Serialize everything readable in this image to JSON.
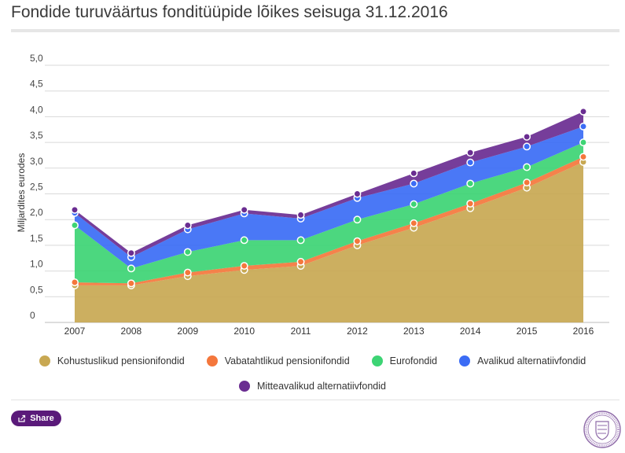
{
  "title": "Fondide turuväärtus fonditüüpide lõikes seisuga 31.12.2016",
  "share_label": "Share",
  "icons": {
    "share": "share-icon",
    "logo": "estonian-coat-of-arms-seal"
  },
  "chart_data": {
    "type": "area",
    "stacked": true,
    "ylabel": "Miljardites eurodes",
    "xlabel": "",
    "ylim": [
      0,
      5
    ],
    "yticks": [
      "0",
      "0,5",
      "1,0",
      "1,5",
      "2,0",
      "2,5",
      "3,0",
      "3,5",
      "4,0",
      "4,5",
      "5,0"
    ],
    "grid": true,
    "legend_position": "bottom",
    "categories": [
      "2007",
      "2008",
      "2009",
      "2010",
      "2011",
      "2012",
      "2013",
      "2014",
      "2015",
      "2016"
    ],
    "series": [
      {
        "name": "Kohustuslikud pensionifondid",
        "color": "#c8a852",
        "values": [
          0.72,
          0.72,
          0.9,
          1.02,
          1.1,
          1.5,
          1.84,
          2.22,
          2.62,
          3.12
        ]
      },
      {
        "name": "Vabatahtlikud pensionifondid",
        "color": "#f4773c",
        "values": [
          0.06,
          0.04,
          0.07,
          0.08,
          0.08,
          0.08,
          0.09,
          0.09,
          0.1,
          0.1
        ]
      },
      {
        "name": "Eurofondid",
        "color": "#3dd474",
        "values": [
          1.11,
          0.29,
          0.4,
          0.5,
          0.42,
          0.42,
          0.37,
          0.39,
          0.3,
          0.28
        ]
      },
      {
        "name": "Avalikud alternatiivfondid",
        "color": "#3b6cf5",
        "values": [
          0.24,
          0.22,
          0.44,
          0.52,
          0.42,
          0.42,
          0.4,
          0.41,
          0.4,
          0.31
        ]
      },
      {
        "name": "Mitteavalikud alternatiivfondid",
        "color": "#6a2d91",
        "values": [
          0.06,
          0.08,
          0.08,
          0.07,
          0.07,
          0.08,
          0.2,
          0.19,
          0.19,
          0.29
        ]
      }
    ]
  }
}
